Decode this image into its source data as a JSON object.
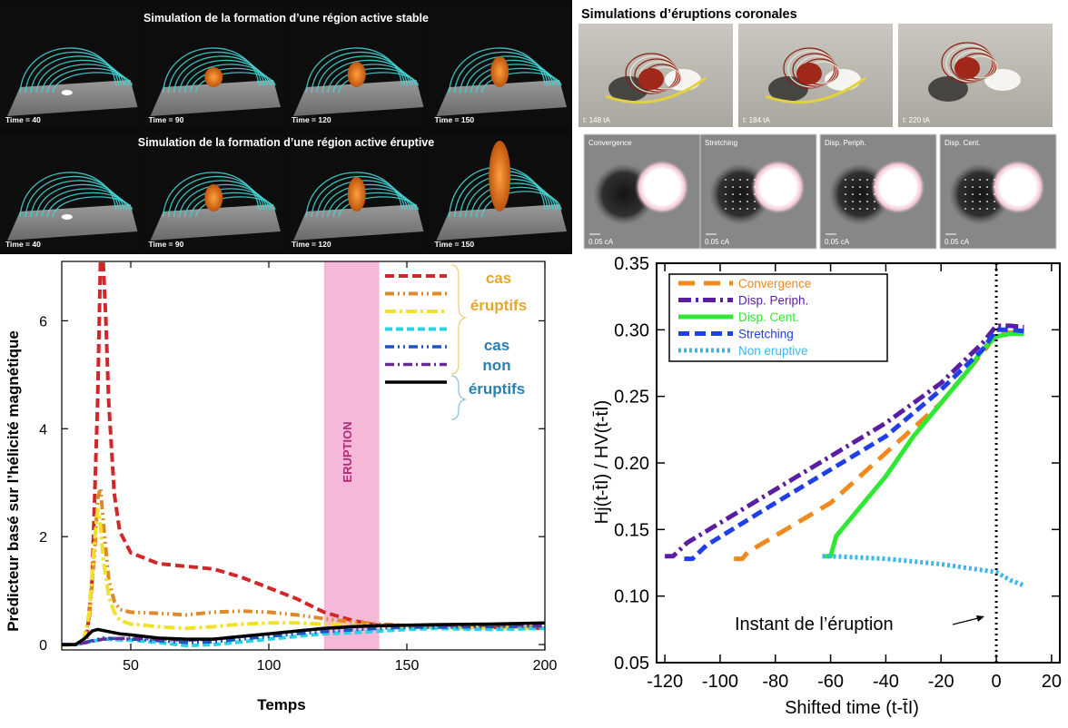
{
  "top_left": {
    "row1_title": "Simulation de la formation d’une région active stable",
    "row2_title": "Simulation de la formation d’une région active éruptive",
    "time_labels": [
      "Time = 40",
      "Time = 90",
      "Time = 120",
      "Time = 150"
    ]
  },
  "top_right": {
    "title": "Simulations d’éruptions coronales",
    "frames": [
      "t: 148 tA",
      "t: 184 tA",
      "t: 220 tA"
    ],
    "modes": [
      "Convergence",
      "Stretching",
      "Disp. Periph.",
      "Disp. Cent."
    ],
    "scale_label": "0.05 cA"
  },
  "colors": {
    "red": "#d0282a",
    "orange": "#e0892b",
    "yellow": "#f2e12a",
    "cyan": "#2ad3e4",
    "blue": "#1f54c4",
    "purple": "#6a2a94",
    "black": "#000000",
    "gold_text": "#e3a72b",
    "teal_text": "#2a7fb2",
    "eruption_band": "#f6b8d8",
    "eruption_text": "#b02a76",
    "r_orange": "#f0891e",
    "r_purple": "#5a1ea0",
    "r_green": "#2ee833",
    "r_blue": "#1f3fe8",
    "r_cyan": "#34b8f0"
  },
  "chart_data": [
    {
      "type": "line",
      "xlabel": "Temps",
      "ylabel": "Prédicteur basé sur l’hélicité magnétique",
      "xlim": [
        25,
        200
      ],
      "ylim": [
        -0.1,
        7.1
      ],
      "xticks": [
        50,
        100,
        150,
        200
      ],
      "yticks": [
        0,
        2,
        4,
        6
      ],
      "band": {
        "x": [
          120,
          140
        ],
        "label": "ERUPTION"
      },
      "legend_groups": [
        {
          "label_lines": [
            "cas",
            "éruptifs"
          ]
        },
        {
          "label_lines": [
            "cas",
            "non",
            "éruptifs"
          ]
        }
      ],
      "series": [
        {
          "color_key": "red",
          "dash": "10 5",
          "width": 4,
          "x": [
            25,
            30,
            34,
            36,
            38,
            39,
            40,
            41,
            42,
            44,
            46,
            50,
            55,
            60,
            70,
            80,
            90,
            100,
            110,
            120,
            130,
            140,
            150,
            160,
            180,
            200
          ],
          "y": [
            0,
            0,
            0.08,
            1.2,
            4.5,
            7.1,
            7.1,
            6,
            4.5,
            2.8,
            2.1,
            1.7,
            1.6,
            1.5,
            1.45,
            1.4,
            1.25,
            1.05,
            0.85,
            0.6,
            0.45,
            0.35,
            0.35,
            0.32,
            0.32,
            0.3
          ]
        },
        {
          "color_key": "orange",
          "dash": "10 4 2 4 2 4",
          "width": 4,
          "x": [
            25,
            30,
            33,
            35,
            37,
            38,
            39,
            40,
            42,
            44,
            46,
            50,
            60,
            70,
            80,
            90,
            100,
            110,
            120,
            130,
            140,
            150,
            160,
            180,
            200
          ],
          "y": [
            0,
            0,
            0.08,
            0.5,
            1.8,
            2.7,
            2.9,
            2.3,
            1.2,
            0.8,
            0.65,
            0.6,
            0.58,
            0.55,
            0.6,
            0.62,
            0.6,
            0.55,
            0.48,
            0.42,
            0.38,
            0.36,
            0.34,
            0.33,
            0.32
          ]
        },
        {
          "color_key": "yellow",
          "dash": "12 4 3 4",
          "width": 4,
          "x": [
            25,
            30,
            33,
            35,
            37,
            38,
            39,
            40,
            42,
            44,
            46,
            50,
            60,
            70,
            80,
            90,
            100,
            110,
            120,
            130,
            140,
            150,
            160,
            180,
            200
          ],
          "y": [
            0,
            0,
            0.1,
            0.6,
            2.0,
            2.5,
            2.2,
            1.6,
            0.9,
            0.6,
            0.45,
            0.38,
            0.33,
            0.3,
            0.33,
            0.38,
            0.4,
            0.4,
            0.38,
            0.36,
            0.34,
            0.33,
            0.32,
            0.3,
            0.3
          ]
        },
        {
          "color_key": "cyan",
          "dash": "8 4",
          "width": 4,
          "x": [
            25,
            30,
            35,
            40,
            50,
            60,
            70,
            80,
            90,
            100,
            110,
            120,
            130,
            140,
            150,
            160,
            180,
            200
          ],
          "y": [
            0,
            0,
            0.05,
            0.1,
            0.08,
            0.04,
            -0.02,
            0,
            0.05,
            0.1,
            0.15,
            0.2,
            0.22,
            0.25,
            0.28,
            0.3,
            0.28,
            0.3
          ]
        },
        {
          "color_key": "blue",
          "dash": "10 4 2 4 2 4",
          "width": 3.5,
          "x": [
            25,
            30,
            35,
            40,
            50,
            60,
            70,
            80,
            90,
            100,
            110,
            120,
            130,
            140,
            150,
            160,
            180,
            200
          ],
          "y": [
            0,
            0,
            0.06,
            0.12,
            0.1,
            0.07,
            0.04,
            0.05,
            0.1,
            0.15,
            0.2,
            0.24,
            0.27,
            0.3,
            0.32,
            0.32,
            0.33,
            0.34
          ]
        },
        {
          "color_key": "purple",
          "dash": "10 4 2 4",
          "width": 3.5,
          "x": [
            25,
            30,
            35,
            40,
            50,
            60,
            70,
            80,
            90,
            100,
            110,
            120,
            130,
            140,
            150,
            160,
            180,
            200
          ],
          "y": [
            0,
            0,
            0.05,
            0.1,
            0.12,
            0.1,
            0.08,
            0.1,
            0.15,
            0.2,
            0.25,
            0.3,
            0.33,
            0.35,
            0.36,
            0.36,
            0.36,
            0.36
          ]
        },
        {
          "color_key": "black",
          "dash": "",
          "width": 3.5,
          "x": [
            25,
            30,
            33,
            36,
            38,
            42,
            46,
            50,
            60,
            70,
            80,
            90,
            100,
            110,
            120,
            130,
            140,
            150,
            160,
            180,
            200
          ],
          "y": [
            0,
            0,
            0.1,
            0.25,
            0.28,
            0.24,
            0.2,
            0.18,
            0.12,
            0.1,
            0.1,
            0.15,
            0.2,
            0.25,
            0.3,
            0.33,
            0.35,
            0.36,
            0.37,
            0.38,
            0.4
          ]
        }
      ]
    },
    {
      "type": "line",
      "xlabel": "Shifted time (t-t̄I)",
      "ylabel": "Hj(t-t̄I) / HV(t-t̄I)",
      "xlim": [
        -123,
        23
      ],
      "ylim": [
        0.05,
        0.35
      ],
      "xticks": [
        -120,
        -100,
        -80,
        -60,
        -40,
        -20,
        0,
        20
      ],
      "yticks": [
        0.05,
        0.1,
        0.15,
        0.2,
        0.25,
        0.3,
        0.35
      ],
      "vline": 0,
      "annotation": "Instant de l’éruption",
      "series": [
        {
          "name": "Convergence",
          "color_key": "r_orange",
          "dash": "18 10",
          "width": 5,
          "x": [
            -95,
            -92,
            -90,
            -60,
            -20,
            -10,
            -3,
            0,
            5,
            10
          ],
          "y": [
            0.128,
            0.128,
            0.133,
            0.17,
            0.245,
            0.27,
            0.288,
            0.297,
            0.298,
            0.298
          ]
        },
        {
          "name": "Disp. Periph.",
          "color_key": "r_purple",
          "dash": "14 5 3 5",
          "width": 5,
          "x": [
            -120,
            -117,
            -112,
            -80,
            -40,
            -20,
            -5,
            0,
            5,
            10
          ],
          "y": [
            0.13,
            0.13,
            0.14,
            0.18,
            0.23,
            0.26,
            0.29,
            0.303,
            0.303,
            0.302
          ]
        },
        {
          "name": "Disp. Cent.",
          "color_key": "r_green",
          "dash": "",
          "width": 5,
          "x": [
            -62,
            -60,
            -58,
            -50,
            -40,
            -30,
            -20,
            -10,
            -5,
            0,
            5,
            10
          ],
          "y": [
            0.13,
            0.13,
            0.145,
            0.165,
            0.19,
            0.22,
            0.245,
            0.27,
            0.285,
            0.295,
            0.297,
            0.297
          ]
        },
        {
          "name": "Stretching",
          "color_key": "r_blue",
          "dash": "12 6",
          "width": 5,
          "x": [
            -113,
            -110,
            -105,
            -80,
            -40,
            -20,
            -5,
            0,
            5,
            10
          ],
          "y": [
            0.128,
            0.128,
            0.138,
            0.17,
            0.22,
            0.255,
            0.285,
            0.3,
            0.3,
            0.299
          ]
        },
        {
          "name": "Non eruptive",
          "color_key": "r_cyan",
          "dash": "3 3",
          "width": 5,
          "x": [
            -63,
            -60,
            -40,
            -20,
            0,
            5,
            10
          ],
          "y": [
            0.13,
            0.13,
            0.128,
            0.124,
            0.118,
            0.112,
            0.108
          ]
        }
      ]
    }
  ]
}
